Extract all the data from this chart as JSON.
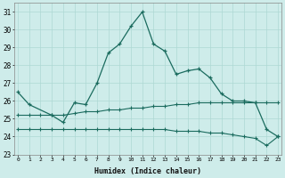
{
  "xlabel": "Humidex (Indice chaleur)",
  "bg_color": "#ceecea",
  "grid_color": "#aed8d4",
  "line_color": "#1a6b5e",
  "x": [
    0,
    1,
    2,
    3,
    4,
    5,
    6,
    7,
    8,
    9,
    10,
    11,
    12,
    13,
    14,
    15,
    16,
    17,
    18,
    19,
    20,
    21,
    22,
    23
  ],
  "y_main": [
    26.5,
    25.8,
    null,
    25.2,
    24.8,
    25.9,
    25.8,
    27.0,
    28.7,
    29.2,
    30.2,
    31.0,
    29.2,
    28.8,
    27.5,
    27.7,
    27.8,
    27.3,
    26.4,
    26.0,
    26.0,
    25.9,
    24.4,
    24.0
  ],
  "y_line1": [
    25.2,
    25.2,
    25.2,
    25.2,
    25.2,
    25.3,
    25.4,
    25.4,
    25.5,
    25.5,
    25.6,
    25.6,
    25.7,
    25.7,
    25.8,
    25.8,
    25.9,
    25.9,
    25.9,
    25.9,
    25.9,
    25.9,
    25.9,
    25.9
  ],
  "y_line2": [
    24.4,
    24.4,
    24.4,
    24.4,
    24.4,
    24.4,
    24.4,
    24.4,
    24.4,
    24.4,
    24.4,
    24.4,
    24.4,
    24.4,
    24.3,
    24.3,
    24.3,
    24.2,
    24.2,
    24.1,
    24.0,
    23.9,
    23.5,
    24.0
  ],
  "ylim": [
    23.0,
    31.5
  ],
  "yticks": [
    23,
    24,
    25,
    26,
    27,
    28,
    29,
    30,
    31
  ],
  "xticks": [
    0,
    1,
    2,
    3,
    4,
    5,
    6,
    7,
    8,
    9,
    10,
    11,
    12,
    13,
    14,
    15,
    16,
    17,
    18,
    19,
    20,
    21,
    22,
    23
  ],
  "xlim": [
    -0.3,
    23.3
  ]
}
